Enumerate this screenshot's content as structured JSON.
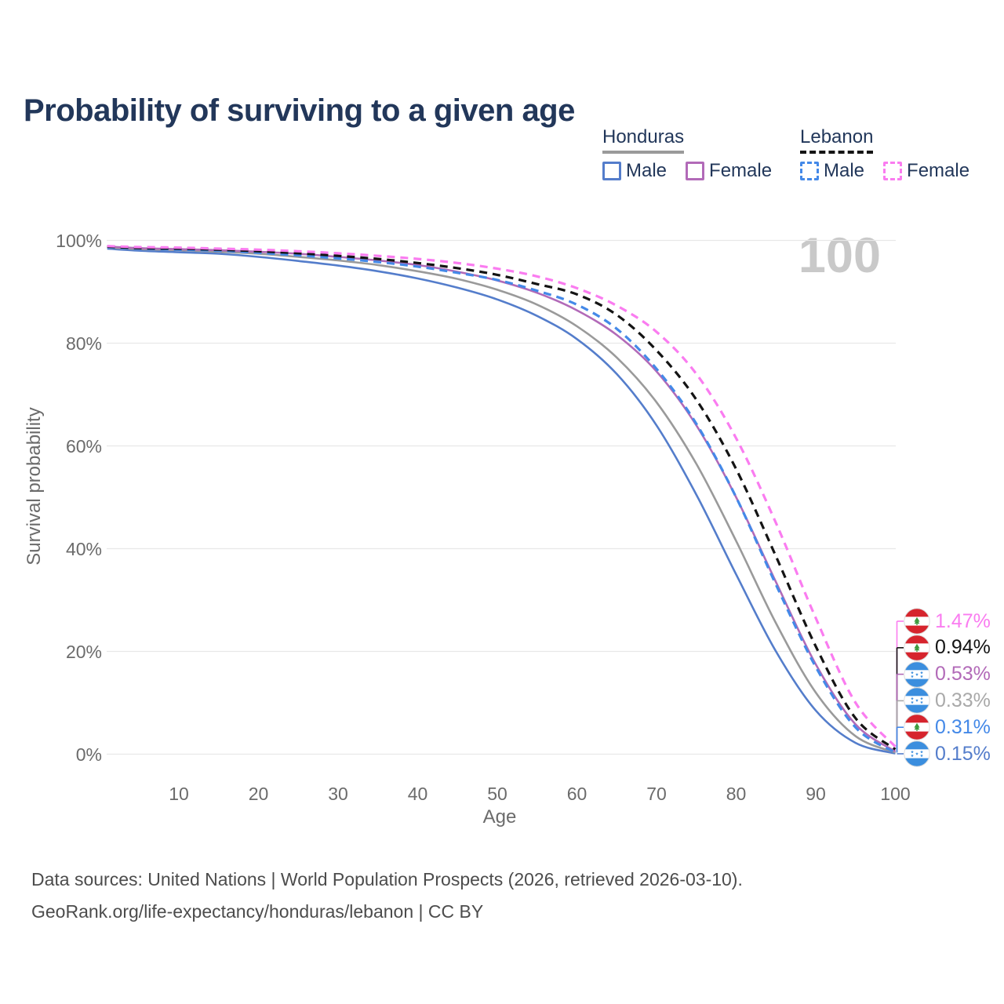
{
  "title": "Probability of surviving to a given age",
  "watermark_age": "100",
  "legend": {
    "groups": [
      {
        "name": "Honduras",
        "line_style": "solid",
        "underline_color": "#9a9a9a",
        "items": [
          {
            "label": "Male",
            "color": "#547dcb"
          },
          {
            "label": "Female",
            "color": "#b26ab8"
          }
        ]
      },
      {
        "name": "Lebanon",
        "line_style": "dashed",
        "underline_color": "#141414",
        "items": [
          {
            "label": "Male",
            "color": "#4489e8"
          },
          {
            "label": "Female",
            "color": "#fa7cf0"
          }
        ]
      }
    ]
  },
  "chart_data": {
    "type": "line",
    "title": "Probability of surviving to a given age",
    "xlabel": "Age",
    "ylabel": "Survival probability",
    "xlim": [
      0,
      100
    ],
    "ylim": [
      0,
      100
    ],
    "grid": "horizontal",
    "x_ticks": [
      10,
      20,
      30,
      40,
      50,
      60,
      70,
      80,
      90,
      100
    ],
    "y_ticks": [
      0,
      20,
      40,
      60,
      80,
      100
    ],
    "y_tick_suffix": "%",
    "legend_position": "top-right",
    "ages": [
      1,
      5,
      10,
      15,
      20,
      25,
      30,
      35,
      40,
      45,
      50,
      55,
      60,
      65,
      70,
      75,
      80,
      85,
      90,
      95,
      100
    ],
    "series": [
      {
        "name": "Honduras Male",
        "country": "Honduras",
        "sex": "Male",
        "style": "solid",
        "color": "#547dcb",
        "flag": "honduras",
        "end_label": "0.15%",
        "values": [
          98.4,
          98.0,
          97.7,
          97.4,
          96.8,
          96.0,
          95.1,
          94.0,
          92.6,
          90.8,
          88.5,
          85.3,
          80.8,
          74.0,
          64.0,
          50.5,
          35.0,
          20.0,
          8.5,
          2.2,
          0.15
        ]
      },
      {
        "name": "Honduras (both sexes)",
        "country": "Honduras",
        "sex": "Both",
        "style": "solid",
        "color": "#9a9a9a",
        "flag": "honduras",
        "end_label": "0.33%",
        "values": [
          98.6,
          98.3,
          98.1,
          97.8,
          97.4,
          96.8,
          96.1,
          95.2,
          94.0,
          92.5,
          90.4,
          87.5,
          83.3,
          77.2,
          68.5,
          56.5,
          41.5,
          25.5,
          12.0,
          3.5,
          0.33
        ]
      },
      {
        "name": "Honduras Female",
        "country": "Honduras",
        "sex": "Female",
        "style": "solid",
        "color": "#b26ab8",
        "flag": "honduras",
        "end_label": "0.53%",
        "values": [
          98.8,
          98.5,
          98.3,
          98.1,
          97.8,
          97.4,
          96.8,
          96.1,
          95.2,
          93.9,
          92.2,
          89.8,
          86.4,
          81.6,
          74.5,
          64.0,
          50.0,
          33.5,
          17.5,
          5.8,
          0.53
        ]
      },
      {
        "name": "Lebanon Male",
        "country": "Lebanon",
        "sex": "Male",
        "style": "dashed",
        "color": "#4489e8",
        "flag": "lebanon",
        "end_label": "0.31%",
        "values": [
          98.7,
          98.4,
          98.2,
          98.0,
          97.6,
          97.1,
          96.5,
          95.8,
          94.9,
          93.7,
          92.3,
          90.2,
          87.5,
          82.8,
          75.0,
          64.3,
          50.0,
          33.0,
          17.0,
          5.2,
          0.31
        ]
      },
      {
        "name": "Lebanon (both sexes)",
        "country": "Lebanon",
        "sex": "Both",
        "style": "dashed",
        "color": "#141414",
        "flag": "lebanon",
        "end_label": "0.94%",
        "values": [
          98.8,
          98.5,
          98.4,
          98.2,
          97.9,
          97.5,
          97.0,
          96.4,
          95.6,
          94.6,
          93.3,
          91.5,
          89.5,
          85.5,
          78.6,
          69.0,
          55.5,
          38.5,
          21.0,
          7.0,
          0.94
        ]
      },
      {
        "name": "Lebanon Female",
        "country": "Lebanon",
        "sex": "Female",
        "style": "dashed",
        "color": "#fa7cf0",
        "flag": "lebanon",
        "end_label": "1.47%",
        "values": [
          98.9,
          98.7,
          98.6,
          98.4,
          98.2,
          97.9,
          97.5,
          97.0,
          96.4,
          95.6,
          94.5,
          93.0,
          90.7,
          87.3,
          82.2,
          74.0,
          61.5,
          45.0,
          26.5,
          10.0,
          1.47
        ]
      }
    ],
    "end_labels": [
      {
        "series": "Lebanon Female",
        "flag": "lebanon",
        "text": "1.47%",
        "color": "#fa7cf0"
      },
      {
        "series": "Lebanon (both sexes)",
        "flag": "lebanon",
        "text": "0.94%",
        "color": "#141414"
      },
      {
        "series": "Honduras Female",
        "flag": "honduras",
        "text": "0.53%",
        "color": "#b26ab8"
      },
      {
        "series": "Honduras (both sexes)",
        "flag": "honduras",
        "text": "0.33%",
        "color": "#a9a9a9"
      },
      {
        "series": "Lebanon Male",
        "flag": "lebanon",
        "text": "0.31%",
        "color": "#4489e8"
      },
      {
        "series": "Honduras Male",
        "flag": "honduras",
        "text": "0.15%",
        "color": "#547dcb"
      }
    ]
  },
  "flag_colors": {
    "lebanon_red": "#d6242d",
    "lebanon_cedar_green": "#3f9b3f",
    "honduras_blue": "#3b8ede"
  },
  "footer": {
    "line1": "Data sources: United Nations | World Population Prospects (2026, retrieved 2026-03-10).",
    "line2": "GeoRank.org/life-expectancy/honduras/lebanon | CC BY"
  }
}
